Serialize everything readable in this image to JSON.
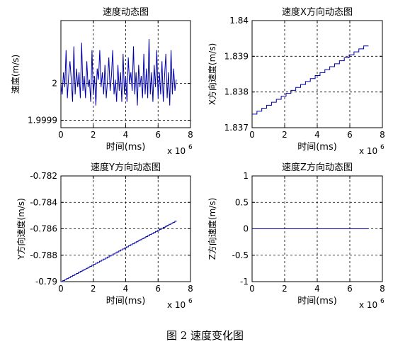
{
  "figure_caption": "图 2 速度变化图",
  "chart_data": [
    {
      "type": "line",
      "title": "速度动态图",
      "xlabel": "时间(ms)",
      "ylabel": "速度(m/s)",
      "x_multiplier": "x 10",
      "x_exponent": "6",
      "xlim": [
        0,
        8
      ],
      "ylim": [
        1.99988,
        2.00017
      ],
      "xticks": [
        0,
        2,
        4,
        6,
        8
      ],
      "xtick_labels": [
        "0",
        "2",
        "4",
        "6",
        "8"
      ],
      "yticks": [
        1.9999,
        2
      ],
      "ytick_labels": [
        "1.9999",
        "2"
      ],
      "grid": true,
      "line_color": "#0000aa",
      "series": [
        {
          "x": [
            0.0,
            0.08,
            0.16,
            0.24,
            0.32,
            0.4,
            0.48,
            0.56,
            0.64,
            0.72,
            0.8,
            0.88,
            0.96,
            1.04,
            1.12,
            1.2,
            1.28,
            1.36,
            1.44,
            1.52,
            1.6,
            1.68,
            1.76,
            1.84,
            1.92,
            2.0,
            2.08,
            2.16,
            2.24,
            2.32,
            2.4,
            2.48,
            2.56,
            2.64,
            2.72,
            2.8,
            2.88,
            2.96,
            3.04,
            3.12,
            3.2,
            3.28,
            3.36,
            3.44,
            3.52,
            3.6,
            3.68,
            3.76,
            3.84,
            3.92,
            4.0,
            4.08,
            4.16,
            4.24,
            4.32,
            4.4,
            4.48,
            4.56,
            4.64,
            4.72,
            4.8,
            4.88,
            4.96,
            5.04,
            5.12,
            5.2,
            5.28,
            5.36,
            5.44,
            5.52,
            5.6,
            5.68,
            5.76,
            5.84,
            5.92,
            6.0,
            6.08,
            6.16,
            6.24,
            6.32,
            6.4,
            6.48,
            6.56,
            6.64,
            6.72,
            6.8,
            6.88,
            6.96,
            7.04,
            7.12
          ],
          "y": [
            2.0,
            1.99997,
            2.00003,
            1.99999,
            2.00009,
            1.99996,
            2.00002,
            2.00006,
            2.00001,
            1.99995,
            2.0001,
            1.99997,
            2.00004,
            1.99999,
            2.00003,
            1.99996,
            2.00011,
            1.99998,
            2.00002,
            1.99996,
            2.00006,
            1.99999,
            2.00001,
            1.99995,
            2.00009,
            1.99997,
            2.00002,
            1.99994,
            2.00004,
            2.00001,
            2.00009,
            1.99999,
            2.00003,
            1.99997,
            2.00005,
            1.99996,
            2.00001,
            2.00007,
            1.99998,
            2.00002,
            2.00009,
            1.99997,
            2.00001,
            1.99995,
            2.00005,
            1.99998,
            2.00003,
            1.99995,
            2.00008,
            1.99997,
            2.00002,
            1.99995,
            2.00007,
            2.0,
            2.00003,
            1.99998,
            2.0001,
            1.99997,
            2.00003,
            1.99994,
            2.00005,
            1.99999,
            2.00002,
            1.99996,
            2.00008,
            1.99997,
            2.00004,
            1.99996,
            2.00012,
            1.99997,
            2.00003,
            1.99995,
            2.00005,
            1.99999,
            2.00009,
            1.99996,
            2.00003,
            1.99997,
            2.00006,
            1.99995,
            2.00002,
            2.00008,
            1.99996,
            2.00003,
            1.99994,
            2.00009,
            1.99997,
            2.00004,
            1.99998,
            2.00001
          ]
        }
      ]
    },
    {
      "type": "line",
      "title": "速度X方向动态图",
      "xlabel": "时间(ms)",
      "ylabel": "X方向速度(m/s)",
      "x_multiplier": "x 10",
      "x_exponent": "6",
      "xlim": [
        0,
        8
      ],
      "ylim": [
        1.837,
        1.84
      ],
      "xticks": [
        0,
        2,
        4,
        6,
        8
      ],
      "xtick_labels": [
        "0",
        "2",
        "4",
        "6",
        "8"
      ],
      "yticks": [
        1.837,
        1.838,
        1.839,
        1.84
      ],
      "ytick_labels": [
        "1.837",
        "1.838",
        "1.839",
        "1.84"
      ],
      "grid": true,
      "line_color": "#0000aa",
      "series": [
        {
          "x": [
            0.0,
            7.15
          ],
          "y": [
            1.83738,
            1.83929
          ],
          "style": "staircase",
          "step_dx": 0.3
        }
      ]
    },
    {
      "type": "line",
      "title": "速度Y方向动态图",
      "xlabel": "时间(ms)",
      "ylabel": "Y方向速度(m/s)",
      "x_multiplier": "x 10",
      "x_exponent": "6",
      "xlim": [
        0,
        8
      ],
      "ylim": [
        -0.79,
        -0.782
      ],
      "xticks": [
        0,
        2,
        4,
        6,
        8
      ],
      "xtick_labels": [
        "0",
        "2",
        "4",
        "6",
        "8"
      ],
      "yticks": [
        -0.79,
        -0.788,
        -0.786,
        -0.784,
        -0.782
      ],
      "ytick_labels": [
        "-0.79",
        "-0.788",
        "-0.786",
        "-0.784",
        "-0.782"
      ],
      "grid": true,
      "line_color": "#0000aa",
      "series": [
        {
          "x": [
            0.0,
            7.15
          ],
          "y": [
            -0.79,
            -0.78543
          ],
          "style": "staircase",
          "step_dx": 0.12
        }
      ]
    },
    {
      "type": "line",
      "title": "速度Z方向动态图",
      "xlabel": "时间(ms)",
      "ylabel": "Z方向速度(m/s)",
      "x_multiplier": "x 10",
      "x_exponent": "6",
      "xlim": [
        0,
        8
      ],
      "ylim": [
        -1,
        1
      ],
      "xticks": [
        0,
        2,
        4,
        6,
        8
      ],
      "xtick_labels": [
        "0",
        "2",
        "4",
        "6",
        "8"
      ],
      "yticks": [
        -1,
        -0.5,
        0,
        0.5,
        1
      ],
      "ytick_labels": [
        "-1",
        "-0.5",
        "0",
        "0.5",
        "1"
      ],
      "grid": true,
      "line_color": "#0000aa",
      "series": [
        {
          "x": [
            0.0,
            7.15
          ],
          "y": [
            0,
            0
          ]
        }
      ]
    }
  ]
}
